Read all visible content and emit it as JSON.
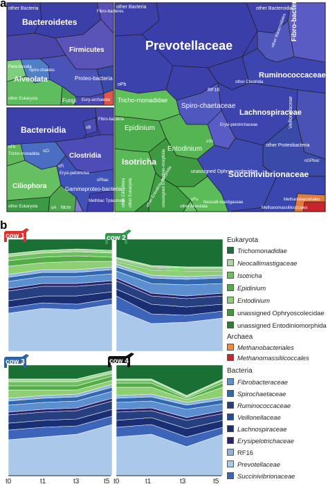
{
  "panels": {
    "a": "a",
    "b": "b"
  },
  "voronoi": {
    "top_left": [
      "other Bacteria",
      "Bacteroidetes",
      "Fibro-bacteres",
      "Firmicutes",
      "Para-basalia",
      "Spiro-chaetes",
      "Alveolata",
      "Proteo-bacteria",
      "other Eukaryota",
      "Fungi",
      "Eury-archaeota"
    ],
    "bottom_left": [
      "Bacteroidia",
      "oB",
      "Fibro-bacteria",
      "oFb",
      "Tricho-monadida",
      "Clostridia",
      "oCi",
      "oFi",
      "Erysi-pelotrichia",
      "Ciliophora",
      "Gammaproteo-bacteria",
      "oPbac",
      "other Eukaryota",
      "oA",
      "Ncm",
      "Methbac Tplasmata"
    ],
    "right": [
      "other Bacteria",
      "other Bacteroidia",
      "Fibro-bacteraceae",
      "Prevotellaceae",
      "other Bacteroidales",
      "Ruminococcaceae",
      "other Clostridia",
      "oPb",
      "RF16",
      "Tricho-monadidae",
      "Spiro-chaetaceae",
      "Lachnospiraceae",
      "Veillonellaceae",
      "Erysi-pelotrichaceae",
      "oSc",
      "Epidinium",
      "other Proteobacteria",
      "oGPbac",
      "Isotricha",
      "Entodinium",
      "Succinivibrionaceae",
      "unassigned Ophryo-scolecidae",
      "oFu",
      "Neocalli-mastigaceae",
      "other Ciliophora",
      "other Eukaryota",
      "other Entodinio-morphida",
      "unassigned Entodinio-morphida",
      "other Alveolata",
      "Methanobacteriales",
      "Methanomassiliicoccales"
    ]
  },
  "cows": [
    "cow 1",
    "cow 2",
    "cow 3",
    "cow 4"
  ],
  "cow_colors": [
    "#d9322f",
    "#2f9a4c",
    "#2c62a8",
    "#111111"
  ],
  "x_ticks": [
    "t0",
    "t1",
    "t3",
    "t5"
  ],
  "legend": {
    "eukaryota": {
      "title": "Eukaryota",
      "items": [
        {
          "label": "Trichomonadidae",
          "color": "#1a6f35",
          "italic": true
        },
        {
          "label": "Neocallimastigaceae",
          "color": "#a9d99a",
          "italic": true
        },
        {
          "label": "Isotricha",
          "color": "#6dbf5f",
          "italic": true
        },
        {
          "label": "Epidinium",
          "color": "#52ad47",
          "italic": true
        },
        {
          "label": "Entodinium",
          "color": "#8ecf74",
          "italic": true
        },
        {
          "label": "unassigned Ophryoscolecidae",
          "color": "#3f9a3a",
          "italic": false
        },
        {
          "label": "unassigned Entodiniomorphida",
          "color": "#2c7f30",
          "italic": false
        }
      ]
    },
    "archaea": {
      "title": "Archaea",
      "items": [
        {
          "label": "Methanobacteriales",
          "color": "#f08a3c",
          "italic": true
        },
        {
          "label": "Methanomassiliicoccales",
          "color": "#c8262c",
          "italic": true
        }
      ]
    },
    "bacteria": {
      "title": "Bacteria",
      "items": [
        {
          "label": "Fibrobacteraceae",
          "color": "#5b8fd0",
          "italic": true
        },
        {
          "label": "Spirochaetaceae",
          "color": "#2f68b0",
          "italic": true
        },
        {
          "label": "Ruminococcaceae",
          "color": "#253f80",
          "italic": true
        },
        {
          "label": "Veillonellaceae",
          "color": "#1d4d9c",
          "italic": true
        },
        {
          "label": "Lachnospiraceae",
          "color": "#1a2f73",
          "italic": true
        },
        {
          "label": "Erysipelotrichaceae",
          "color": "#2a246e",
          "italic": true
        },
        {
          "label": "RF16",
          "color": "#8fb3df",
          "italic": false
        },
        {
          "label": "Prevotellaceae",
          "color": "#a9c8ea",
          "italic": true
        },
        {
          "label": "Succinivibrionaceae",
          "color": "#3c64b8",
          "italic": true
        }
      ]
    }
  }
}
